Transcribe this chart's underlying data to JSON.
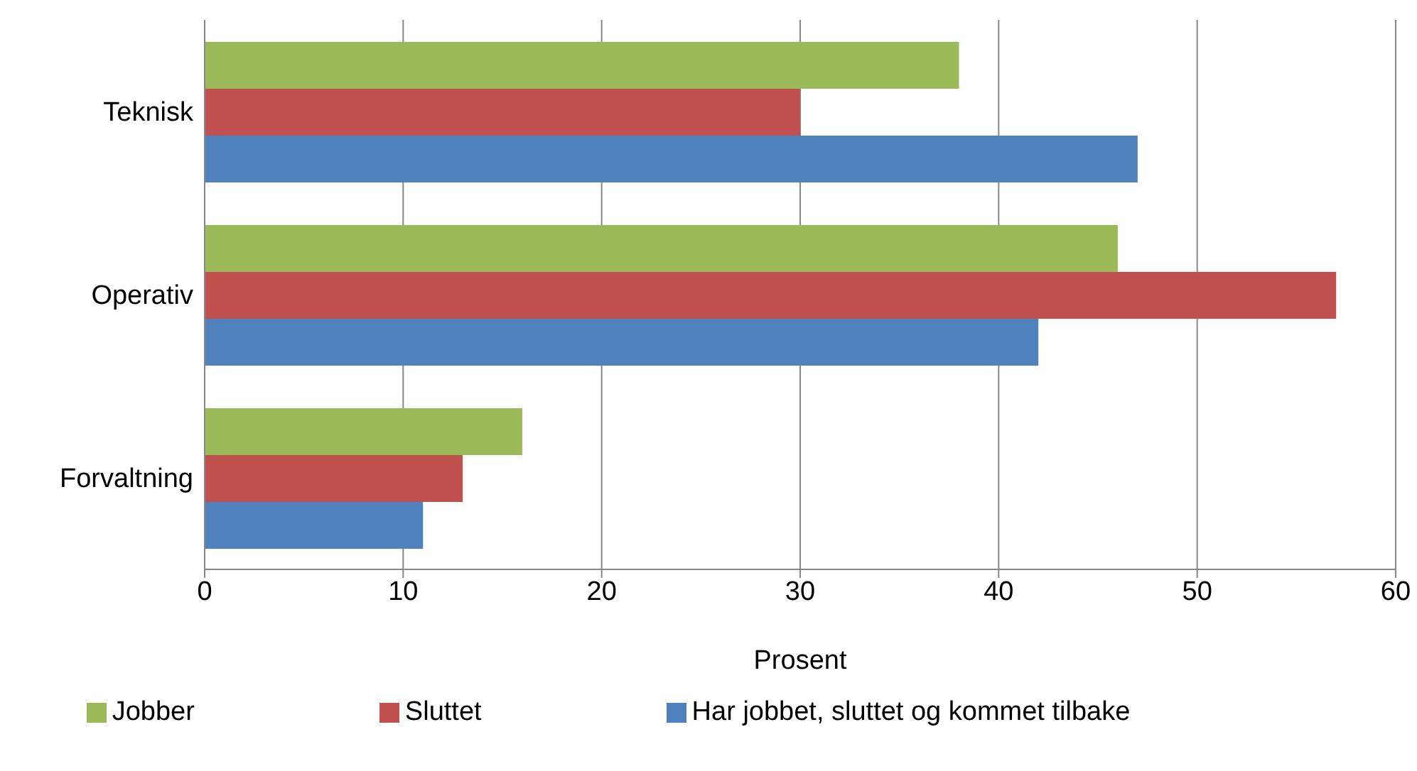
{
  "chart_data": {
    "type": "bar",
    "orientation": "horizontal",
    "xlabel": "Prosent",
    "categories": [
      "Teknisk",
      "Operativ",
      "Forvaltning"
    ],
    "series": [
      {
        "name": "Jobber",
        "color": "#9bbb59",
        "values": [
          38,
          46,
          16
        ]
      },
      {
        "name": "Sluttet",
        "color": "#c0504d",
        "values": [
          30,
          57,
          13
        ]
      },
      {
        "name": "Har jobbet, sluttet og kommet tilbake",
        "color": "#4f81bd",
        "values": [
          47,
          42,
          11
        ]
      }
    ],
    "xlim": [
      0,
      60
    ],
    "xticks": [
      0,
      10,
      20,
      30,
      40,
      50,
      60
    ],
    "grid": "x",
    "legend": "bottom"
  }
}
